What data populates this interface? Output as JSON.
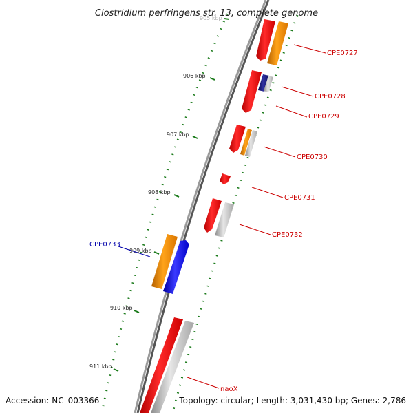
{
  "title": "Clostridium perfringens str. 13, complete genome",
  "footer": {
    "accession": "Accession: NC_003366",
    "stats": "Topology: circular; Length: 3,031,430 bp; Genes: 2,786"
  },
  "colors": {
    "backbone": "#808080",
    "tick": "#1a7a1a",
    "gene_red": "#ff0000",
    "gene_orange": "#ff8c00",
    "gene_gray": "#bbbbbb",
    "gene_blue": "#0000ff",
    "gene_navy": "#1a1a8c",
    "label_red": "#cc0000",
    "label_blue": "#0000aa"
  },
  "ticks": [
    {
      "label": "905 kbp"
    },
    {
      "label": "906 kbp"
    },
    {
      "label": "907 kbp"
    },
    {
      "label": "908 kbp"
    },
    {
      "label": "909 kbp"
    },
    {
      "label": "910 kbp"
    },
    {
      "label": "911 kbp"
    }
  ],
  "gene_labels": [
    {
      "text": "CPE0727",
      "color": "red"
    },
    {
      "text": "CPE0728",
      "color": "red"
    },
    {
      "text": "CPE0729",
      "color": "red"
    },
    {
      "text": "CPE0730",
      "color": "red"
    },
    {
      "text": "CPE0731",
      "color": "red"
    },
    {
      "text": "CPE0732",
      "color": "red"
    },
    {
      "text": "CPE0733",
      "color": "blue"
    },
    {
      "text": "naoX",
      "color": "red"
    }
  ]
}
